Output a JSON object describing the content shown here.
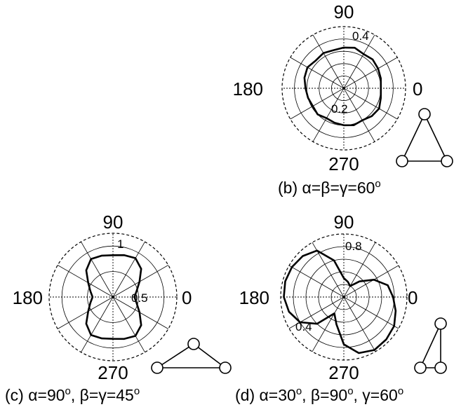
{
  "chart_data": [
    {
      "id": "b",
      "type": "polar",
      "caption": "(b) α=β=γ=60°",
      "caption_parts": {
        "letter": "(b) ",
        "text": "α=β=γ=60",
        "sup": "o"
      },
      "angle_labels": [
        "90",
        "180",
        "0",
        "270"
      ],
      "radial_tick_labels": [
        "0.4",
        "0.2"
      ],
      "rlim": [
        0,
        0.5
      ],
      "rings": [
        0.1,
        0.2,
        0.3,
        0.4
      ],
      "spokes_deg": [
        0,
        30,
        60,
        90,
        120,
        150,
        180,
        210,
        240,
        270,
        300,
        330
      ],
      "grid": true,
      "triangle_icon": "equilateral-triangle-icon",
      "series": [
        {
          "theta_deg": [
            0,
            15,
            30,
            45,
            60,
            75,
            90,
            105,
            120,
            135,
            150,
            165,
            180,
            195,
            210,
            225,
            240,
            255,
            270,
            285,
            300,
            315,
            330,
            345
          ],
          "r": [
            0.3,
            0.31,
            0.32,
            0.33,
            0.32,
            0.34,
            0.33,
            0.32,
            0.33,
            0.32,
            0.34,
            0.33,
            0.31,
            0.3,
            0.29,
            0.3,
            0.28,
            0.29,
            0.3,
            0.31,
            0.3,
            0.32,
            0.33,
            0.31
          ]
        }
      ]
    },
    {
      "id": "c",
      "type": "polar",
      "caption": "(c) α=90°, β=γ=45°",
      "caption_parts": {
        "letter": "(c) ",
        "a": "α=90",
        "sup1": "o",
        "b": ", β=γ=45",
        "sup2": "o"
      },
      "angle_labels": [
        "90",
        "180",
        "0",
        "270"
      ],
      "radial_tick_labels": [
        "1",
        "0.5"
      ],
      "rlim": [
        0,
        1.25
      ],
      "rings": [
        0.5,
        1.0
      ],
      "spokes_deg": [
        0,
        30,
        60,
        90,
        120,
        150,
        180,
        210,
        240,
        270,
        300,
        330
      ],
      "grid": true,
      "triangle_icon": "right-triangle-icon",
      "series": [
        {
          "theta_deg": [
            0,
            15,
            30,
            45,
            60,
            75,
            90,
            105,
            120,
            135,
            150,
            165,
            180,
            195,
            210,
            225,
            240,
            255,
            270,
            285,
            300,
            315,
            330,
            345
          ],
          "r": [
            0.42,
            0.48,
            0.6,
            0.78,
            0.88,
            0.85,
            0.82,
            0.84,
            0.86,
            0.74,
            0.56,
            0.46,
            0.4,
            0.46,
            0.56,
            0.74,
            0.86,
            0.84,
            0.82,
            0.85,
            0.88,
            0.78,
            0.6,
            0.48
          ]
        }
      ]
    },
    {
      "id": "d",
      "type": "polar",
      "caption": "(d) α=30°, β=90°, γ=60°",
      "caption_parts": {
        "letter": "(d) ",
        "a": "α=30",
        "sup1": "o",
        "b": ", β=90",
        "sup2": "o",
        "c": ", γ=60",
        "sup3": "o"
      },
      "angle_labels": [
        "90",
        "180",
        "0",
        "270"
      ],
      "radial_tick_labels": [
        "0.8",
        "0.4"
      ],
      "rlim": [
        0,
        1.0
      ],
      "rings": [
        0.2,
        0.4,
        0.6,
        0.8
      ],
      "spokes_deg": [
        0,
        30,
        60,
        90,
        120,
        150,
        180,
        210,
        240,
        270,
        300,
        330
      ],
      "grid": true,
      "triangle_icon": "narrow-triangle-icon",
      "series": [
        {
          "theta_deg": [
            0,
            15,
            30,
            45,
            60,
            75,
            90,
            105,
            120,
            135,
            150,
            165,
            180,
            195,
            210,
            225,
            240,
            255,
            270,
            285,
            300,
            315,
            330,
            345
          ],
          "r": [
            0.78,
            0.72,
            0.55,
            0.35,
            0.2,
            0.25,
            0.3,
            0.6,
            0.85,
            0.92,
            0.95,
            0.96,
            0.95,
            0.9,
            0.8,
            0.6,
            0.3,
            0.45,
            0.75,
            0.92,
            0.97,
            0.95,
            0.92,
            0.85
          ]
        }
      ]
    }
  ]
}
